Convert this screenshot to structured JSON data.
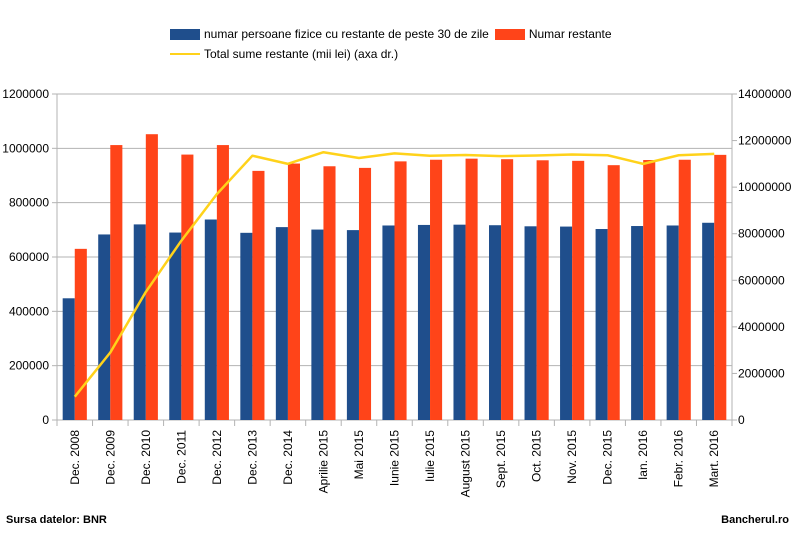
{
  "chart_data": {
    "type": "bar",
    "categories": [
      "Dec. 2008",
      "Dec. 2009",
      "Dec. 2010",
      "Dec. 2011",
      "Dec. 2012",
      "Dec. 2013",
      "Dec. 2014",
      "Aprilie 2015",
      "Mai 2015",
      "Iunie 2015",
      "Iulie 2015",
      "August 2015",
      "Sept. 2015",
      "Oct. 2015",
      "Nov. 2015",
      "Dec. 2015",
      "Ian. 2016",
      "Febr. 2016",
      "Mart. 2016"
    ],
    "series": [
      {
        "name": "numar persoane fizice cu restante de peste 30 de zile",
        "kind": "bar",
        "axis": "left",
        "color": "#1f4e8c",
        "values": [
          448000,
          683000,
          720000,
          690000,
          738000,
          689000,
          710000,
          701000,
          699000,
          716000,
          718000,
          719000,
          717000,
          713000,
          712000,
          703000,
          714000,
          716000,
          726000
        ]
      },
      {
        "name": "Numar restante",
        "kind": "bar",
        "axis": "left",
        "color": "#ff4419",
        "values": [
          630000,
          1012000,
          1052000,
          977000,
          1012000,
          917000,
          944000,
          934000,
          928000,
          952000,
          958000,
          962000,
          960000,
          956000,
          954000,
          938000,
          957000,
          958000,
          976000
        ]
      },
      {
        "name": "Total sume restante (mii lei) (axa dr.)",
        "kind": "line",
        "axis": "right",
        "color": "#ffd21a",
        "values": [
          1000000,
          2900000,
          5500000,
          7700000,
          9700000,
          11350000,
          11000000,
          11500000,
          11250000,
          11450000,
          11350000,
          11380000,
          11330000,
          11360000,
          11400000,
          11370000,
          11000000,
          11370000,
          11430000
        ]
      }
    ],
    "ylim_left": [
      0,
      1200000
    ],
    "yticks_left": [
      "0",
      "200000",
      "400000",
      "600000",
      "800000",
      "1000000",
      "1200000"
    ],
    "ylim_right": [
      0,
      14000000
    ],
    "yticks_right": [
      "0",
      "2000000",
      "4000000",
      "6000000",
      "8000000",
      "10000000",
      "12000000",
      "14000000"
    ],
    "grid": true,
    "legend_position": "top"
  },
  "legend": {
    "item1": "numar persoane fizice cu restante de peste 30 de zile",
    "item2": "Numar restante",
    "item3": "Total sume restante (mii lei) (axa dr.)"
  },
  "footer": {
    "source": "Sursa datelor: BNR",
    "brand": "Bancherul.ro"
  },
  "colors": {
    "bar1": "#1f4e8c",
    "bar2": "#ff4419",
    "line": "#ffd21a",
    "grid": "#b3b3b3"
  }
}
